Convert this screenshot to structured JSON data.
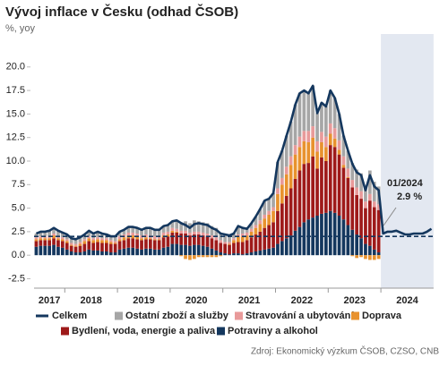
{
  "chart_data": {
    "type": "stacked_bar_line",
    "title": "Vývoj inflace v Česku (odhad ČSOB)",
    "subtitle": "%, yoy",
    "source": "Zdroj: Ekonomický výzkum ČSOB, CZSO, CNB",
    "annotation": [
      "01/2024",
      "2.9 %"
    ],
    "x_labels": [
      "2017",
      "2018",
      "2019",
      "2020",
      "2021",
      "2022",
      "2023",
      "2024"
    ],
    "ylim": [
      -3.5,
      23.5
    ],
    "yticks": [
      -2.5,
      {
        "value": 0,
        "label": "0.0"
      },
      2.5,
      {
        "value": 5,
        "label": "5.0"
      },
      7.5,
      {
        "value": 10,
        "label": "10.0"
      },
      12.5,
      {
        "value": 15,
        "label": "15.0"
      },
      17.5,
      {
        "value": 20,
        "label": "20.0"
      }
    ],
    "reference_line": 2,
    "line": {
      "name": "Celkem",
      "color": "#14375e",
      "values": [
        2.3,
        2.5,
        2.5,
        2.6,
        2.9,
        2.6,
        2.4,
        2.2,
        1.8,
        1.7,
        1.9,
        2.2,
        2.6,
        2.3,
        2.5,
        2.3,
        2.2,
        2.0,
        2.0,
        2.5,
        2.7,
        3.0,
        3.0,
        2.9,
        2.7,
        2.9,
        2.9,
        2.7,
        2.7,
        3.1,
        3.2,
        3.6,
        3.7,
        3.4,
        3.2,
        2.9,
        3.3,
        3.4,
        3.3,
        3.2,
        2.9,
        2.7,
        2.3,
        2.2,
        2.1,
        2.3,
        3.1,
        2.9,
        2.8,
        3.4,
        4.1,
        4.9,
        5.8,
        6.0,
        6.6,
        9.9,
        11.1,
        12.7,
        14.2,
        16.0,
        17.2,
        17.5,
        17.2,
        18.0,
        15.1,
        16.2,
        15.8,
        17.5,
        16.7,
        15.0,
        12.7,
        11.1,
        9.7,
        8.8,
        8.5,
        6.9,
        8.5,
        7.3,
        6.9,
        2.3,
        2.5,
        2.5,
        2.6,
        2.4,
        2.2,
        2.2,
        2.3,
        2.3,
        2.3,
        2.5,
        2.8
      ]
    },
    "series": [
      {
        "name": "Ostatní zboží a služby",
        "color": "#a6a6a6",
        "values": [
          0.4,
          0.5,
          0.5,
          0.6,
          0.6,
          0.6,
          0.5,
          0.5,
          0.5,
          0.5,
          0.5,
          0.5,
          0.6,
          0.5,
          0.6,
          0.5,
          0.4,
          0.4,
          0.5,
          0.5,
          0.5,
          0.6,
          0.6,
          0.6,
          0.6,
          0.7,
          0.8,
          0.7,
          0.7,
          0.7,
          0.7,
          0.7,
          0.9,
          0.9,
          1.0,
          1.0,
          1.2,
          1.1,
          1.1,
          1.1,
          1.0,
          1.0,
          0.8,
          0.8,
          0.7,
          0.5,
          0.9,
          0.6,
          0.4,
          0.6,
          0.9,
          1.2,
          1.5,
          1.3,
          1.5,
          2.8,
          2.9,
          3.3,
          3.7,
          4.3,
          4.6,
          4.3,
          4.0,
          4.3,
          3.0,
          3.1,
          3.2,
          3.5,
          3.2,
          2.8,
          2.2,
          1.9,
          1.8,
          1.9,
          1.9,
          1.6,
          2.5,
          2.1,
          1.9
        ]
      },
      {
        "name": "Stravování a ubytování",
        "color": "#e89a9a",
        "values": [
          0.2,
          0.2,
          0.2,
          0.2,
          0.2,
          0.2,
          0.2,
          0.2,
          0.2,
          0.2,
          0.2,
          0.2,
          0.2,
          0.2,
          0.2,
          0.2,
          0.2,
          0.2,
          0.2,
          0.3,
          0.3,
          0.3,
          0.3,
          0.3,
          0.3,
          0.3,
          0.3,
          0.3,
          0.3,
          0.3,
          0.3,
          0.3,
          0.3,
          0.3,
          0.3,
          0.3,
          0.3,
          0.3,
          0.3,
          0.3,
          0.3,
          0.3,
          0.3,
          0.2,
          0.2,
          0.2,
          0.2,
          0.3,
          0.3,
          0.3,
          0.3,
          0.4,
          0.4,
          0.4,
          0.4,
          0.6,
          0.7,
          0.8,
          0.9,
          1.0,
          1.1,
          1.1,
          1.2,
          1.2,
          1.1,
          1.1,
          1.1,
          1.1,
          1.1,
          1.0,
          0.9,
          0.9,
          0.8,
          0.8,
          0.8,
          0.7,
          0.7,
          0.6,
          0.6
        ]
      },
      {
        "name": "Doprava",
        "color": "#e8922e",
        "values": [
          0.2,
          0.2,
          0.2,
          0.2,
          0.3,
          0.2,
          0.2,
          0.2,
          0.1,
          0.1,
          0.2,
          0.3,
          0.3,
          0.3,
          0.3,
          0.3,
          0.3,
          0.2,
          0.1,
          0.2,
          0.3,
          0.3,
          0.3,
          0.3,
          0.2,
          0.2,
          0.1,
          0.1,
          0.1,
          0.2,
          0.2,
          0.2,
          0.1,
          -0.1,
          -0.4,
          -0.5,
          -0.4,
          -0.2,
          -0.2,
          -0.2,
          -0.2,
          -0.2,
          -0.1,
          0.0,
          0.1,
          0.3,
          0.6,
          0.6,
          0.5,
          0.6,
          0.7,
          0.8,
          1.0,
          1.1,
          1.2,
          1.8,
          2.0,
          2.3,
          2.5,
          2.6,
          2.5,
          2.4,
          2.2,
          2.0,
          1.8,
          1.6,
          1.5,
          1.2,
          0.9,
          0.5,
          0.3,
          0.1,
          -0.1,
          -0.3,
          -0.2,
          -0.4,
          -0.5,
          -0.5,
          -0.4
        ]
      },
      {
        "name": "Bydlení, voda, energie a paliva",
        "color": "#9e1a1a",
        "values": [
          0.6,
          0.6,
          0.6,
          0.6,
          0.7,
          0.7,
          0.7,
          0.7,
          0.6,
          0.6,
          0.7,
          0.8,
          0.9,
          0.8,
          0.9,
          0.9,
          0.9,
          0.9,
          0.9,
          0.9,
          0.9,
          1.0,
          1.0,
          1.0,
          1.0,
          1.0,
          1.0,
          1.0,
          1.0,
          1.1,
          1.1,
          1.2,
          1.2,
          1.2,
          1.2,
          1.1,
          1.1,
          1.1,
          1.1,
          1.1,
          1.1,
          1.1,
          1.0,
          1.0,
          1.0,
          1.1,
          1.2,
          1.3,
          1.4,
          1.6,
          1.8,
          2.0,
          2.3,
          2.5,
          2.7,
          3.5,
          4.0,
          4.5,
          5.0,
          5.5,
          6.0,
          6.2,
          6.0,
          6.5,
          5.0,
          6.0,
          5.5,
          7.0,
          7.0,
          6.5,
          5.5,
          5.0,
          4.5,
          4.2,
          4.2,
          3.8,
          4.8,
          4.5,
          4.5
        ]
      },
      {
        "name": "Potraviny a alkohol",
        "color": "#14375e",
        "values": [
          0.9,
          1.0,
          1.0,
          1.0,
          1.1,
          0.9,
          0.8,
          0.6,
          0.4,
          0.3,
          0.3,
          0.4,
          0.6,
          0.5,
          0.5,
          0.4,
          0.4,
          0.3,
          0.3,
          0.6,
          0.7,
          0.8,
          0.8,
          0.7,
          0.6,
          0.7,
          0.7,
          0.6,
          0.6,
          0.8,
          0.9,
          1.2,
          1.2,
          1.1,
          1.1,
          1.0,
          1.1,
          1.1,
          1.0,
          0.9,
          0.7,
          0.5,
          0.3,
          0.2,
          0.1,
          0.2,
          0.2,
          0.1,
          0.2,
          0.3,
          0.4,
          0.5,
          0.6,
          0.7,
          0.8,
          1.2,
          1.5,
          1.8,
          2.1,
          2.6,
          3.0,
          3.5,
          3.8,
          4.0,
          4.2,
          4.4,
          4.5,
          4.7,
          4.5,
          4.2,
          3.8,
          3.2,
          2.7,
          2.2,
          1.8,
          1.2,
          1.0,
          0.6,
          0.3
        ]
      }
    ]
  }
}
